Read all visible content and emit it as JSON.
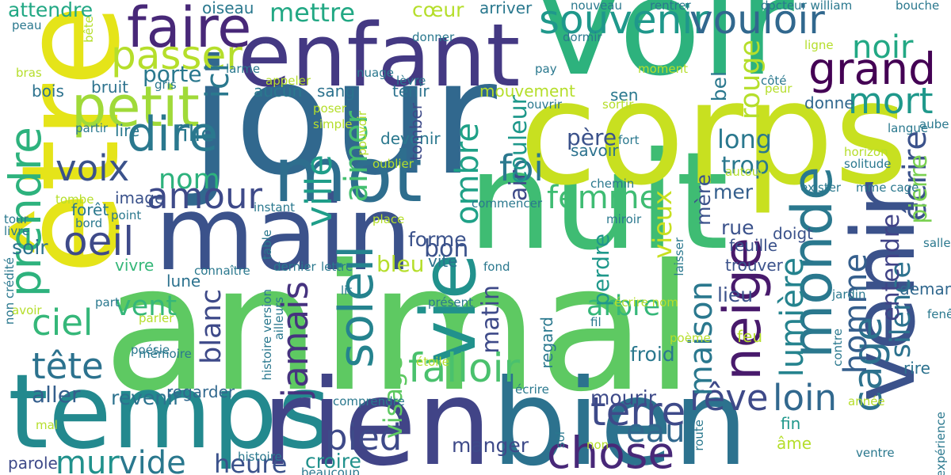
{
  "words": [
    {
      "text": "animal",
      "color": "#5ec962"
    },
    {
      "text": "nuit",
      "color": "#3fbc73"
    },
    {
      "text": "jour",
      "color": "#31688e"
    },
    {
      "text": "corps",
      "color": "#c8e020"
    },
    {
      "text": "voir",
      "color": "#2db27d"
    },
    {
      "text": "être",
      "color": "#e5e419"
    },
    {
      "text": "temps",
      "color": "#23898e"
    },
    {
      "text": "rien",
      "color": "#414487"
    },
    {
      "text": "bien",
      "color": "#2c728e"
    },
    {
      "text": "main",
      "color": "#3b528b"
    },
    {
      "text": "enfant",
      "color": "#443983"
    },
    {
      "text": "venir",
      "color": "#3b528b"
    },
    {
      "text": "mot",
      "color": "#2e6e8e"
    },
    {
      "text": "vie",
      "color": "#21918c"
    },
    {
      "text": "faire",
      "color": "#482878"
    },
    {
      "text": "petit",
      "color": "#a0da39"
    },
    {
      "text": "monde",
      "color": "#2a788e"
    },
    {
      "text": "souvenir",
      "color": "#1f988b"
    },
    {
      "text": "vouloir",
      "color": "#31688e"
    },
    {
      "text": "grand",
      "color": "#440154"
    },
    {
      "text": "passer",
      "color": "#b5de2b"
    },
    {
      "text": "dire",
      "color": "#2a788e"
    },
    {
      "text": "neige",
      "color": "#481a6c"
    },
    {
      "text": "chose",
      "color": "#482878"
    },
    {
      "text": "soleil",
      "color": "#25838e"
    },
    {
      "text": "prendre",
      "color": "#2db27d"
    },
    {
      "text": "oeil",
      "color": "#3e4a89"
    },
    {
      "text": "voix",
      "color": "#3b528b"
    },
    {
      "text": "terre",
      "color": "#3e4a89"
    },
    {
      "text": "falloir",
      "color": "#4ac16d"
    },
    {
      "text": "amour",
      "color": "#3e4a89"
    },
    {
      "text": "ciel",
      "color": "#35b779"
    },
    {
      "text": "tête",
      "color": "#2c728e"
    },
    {
      "text": "cage",
      "color": "#2c728e"
    },
    {
      "text": "pied",
      "color": "#3e4a89"
    },
    {
      "text": "jamais",
      "color": "#46337f"
    },
    {
      "text": "ville",
      "color": "#1f9e89"
    },
    {
      "text": "mort",
      "color": "#1f988b"
    },
    {
      "text": "rêve",
      "color": "#3e4a89"
    },
    {
      "text": "loin",
      "color": "#31688e"
    },
    {
      "text": "femme",
      "color": "#3fbc73"
    },
    {
      "text": "lumière",
      "color": "#25838e"
    },
    {
      "text": "eau",
      "color": "#31688e"
    },
    {
      "text": "écrire",
      "color": "#3b528b"
    },
    {
      "text": "foi",
      "color": "#2a788e"
    },
    {
      "text": "maison",
      "color": "#2a788e"
    },
    {
      "text": "homme",
      "color": "#355f8d"
    },
    {
      "text": "mur",
      "color": "#21918c"
    },
    {
      "text": "vide",
      "color": "#2a788e"
    },
    {
      "text": "ombre",
      "color": "#1fa187"
    },
    {
      "text": "noir",
      "color": "#22a884"
    },
    {
      "text": "aimer",
      "color": "#44bf70"
    },
    {
      "text": "mettre",
      "color": "#22a884"
    },
    {
      "text": "ici",
      "color": "#2a788e"
    },
    {
      "text": "nom",
      "color": "#2db27d"
    },
    {
      "text": "rouge",
      "color": "#b5de2b"
    },
    {
      "text": "blanc",
      "color": "#3e4a89"
    },
    {
      "text": "silence",
      "color": "#2c728e"
    },
    {
      "text": "vent",
      "color": "#35b779"
    },
    {
      "text": "arbre",
      "color": "#35b779"
    },
    {
      "text": "visage",
      "color": "#5ec962"
    },
    {
      "text": "heure",
      "color": "#3b528b"
    },
    {
      "text": "long",
      "color": "#2a788e"
    },
    {
      "text": "trop",
      "color": "#2a788e"
    },
    {
      "text": "air",
      "color": "#3e4a89"
    },
    {
      "text": "couleur",
      "color": "#1f988b"
    },
    {
      "text": "aller",
      "color": "#355f8d"
    },
    {
      "text": "pierre",
      "color": "#7ad151"
    },
    {
      "text": "bon",
      "color": "#3b528b"
    },
    {
      "text": "matin",
      "color": "#3e4a89"
    },
    {
      "text": "attendre",
      "color": "#22a884"
    },
    {
      "text": "bleu",
      "color": "#b5de2b"
    },
    {
      "text": "forme",
      "color": "#3b528b"
    },
    {
      "text": "perdre",
      "color": "#1f988b"
    },
    {
      "text": "vieux",
      "color": "#c8e020"
    },
    {
      "text": "porte",
      "color": "#2a788e"
    },
    {
      "text": "entendre",
      "color": "#404387"
    },
    {
      "text": "lieu",
      "color": "#3b528b"
    },
    {
      "text": "rue",
      "color": "#3b528b"
    },
    {
      "text": "fille",
      "color": "#2a788e"
    },
    {
      "text": "soir",
      "color": "#2c728e"
    },
    {
      "text": "mer",
      "color": "#355f8d"
    },
    {
      "text": "père",
      "color": "#3b528b"
    },
    {
      "text": "cœur",
      "color": "#b5de2b"
    },
    {
      "text": "sang",
      "color": "#2c728e"
    },
    {
      "text": "mère",
      "color": "#3b528b"
    },
    {
      "text": "feuille",
      "color": "#3b528b"
    },
    {
      "text": "bel",
      "color": "#2a788e"
    },
    {
      "text": "froid",
      "color": "#2a788e"
    },
    {
      "text": "manger",
      "color": "#3e4a89"
    },
    {
      "text": "croire",
      "color": "#21918c"
    },
    {
      "text": "mourir",
      "color": "#3e4a89"
    },
    {
      "text": "regarder",
      "color": "#31688e"
    },
    {
      "text": "revenir",
      "color": "#2c728e"
    },
    {
      "text": "fin",
      "color": "#1f988b"
    },
    {
      "text": "âme",
      "color": "#b5de2b"
    },
    {
      "text": "bois",
      "color": "#2c728e"
    },
    {
      "text": "lire",
      "color": "#2a788e"
    },
    {
      "text": "bruit",
      "color": "#2c728e"
    },
    {
      "text": "tenir",
      "color": "#2c728e"
    },
    {
      "text": "devenir",
      "color": "#2a788e"
    },
    {
      "text": "savoir",
      "color": "#2c728e"
    },
    {
      "text": "aucun",
      "color": "#2a788e"
    },
    {
      "text": "image",
      "color": "#3b528b"
    },
    {
      "text": "forêt",
      "color": "#2a788e"
    },
    {
      "text": "trouver",
      "color": "#3b528b"
    },
    {
      "text": "doigt",
      "color": "#3b528b"
    },
    {
      "text": "demande",
      "color": "#31688e"
    },
    {
      "text": "mouvement",
      "color": "#b5de2b"
    },
    {
      "text": "rire",
      "color": "#2c728e"
    },
    {
      "text": "vite",
      "color": "#2c728e"
    },
    {
      "text": "vivre",
      "color": "#35b779"
    },
    {
      "text": "lune",
      "color": "#2c728e"
    },
    {
      "text": "parole",
      "color": "#3e4a89"
    },
    {
      "text": "feu",
      "color": "#b5de2b"
    },
    {
      "text": "tomber",
      "color": "#3e4a89"
    },
    {
      "text": "sen",
      "color": "#2a788e"
    },
    {
      "text": "donne",
      "color": "#31688e"
    },
    {
      "text": "regard",
      "color": "#2a788e"
    },
    {
      "text": "arriver",
      "color": "#2a788e"
    },
    {
      "text": "oiseau",
      "color": "#2a788e"
    },
    {
      "text": "nouveau",
      "color": "#2a788e"
    },
    {
      "text": "rentrer",
      "color": "#2a788e"
    },
    {
      "text": "docteur william",
      "color": "#2a788e"
    },
    {
      "text": "bouche",
      "color": "#2a788e"
    },
    {
      "text": "peau",
      "color": "#2a788e"
    },
    {
      "text": "bête",
      "color": "#b5de2b"
    },
    {
      "text": "donner",
      "color": "#2a788e"
    },
    {
      "text": "dormir",
      "color": "#2a788e"
    },
    {
      "text": "ligne",
      "color": "#b5de2b"
    },
    {
      "text": "larme",
      "color": "#2a788e"
    },
    {
      "text": "nuage",
      "color": "#2a788e"
    },
    {
      "text": "pay",
      "color": "#2a788e"
    },
    {
      "text": "moment",
      "color": "#b5de2b"
    },
    {
      "text": "appeler",
      "color": "#b5de2b"
    },
    {
      "text": "lèvre",
      "color": "#2a788e"
    },
    {
      "text": "bras",
      "color": "#b5de2b"
    },
    {
      "text": "gris",
      "color": "#2a788e"
    },
    {
      "text": "côté",
      "color": "#2a788e"
    },
    {
      "text": "peur",
      "color": "#b5de2b"
    },
    {
      "text": "poser",
      "color": "#b5de2b"
    },
    {
      "text": "ouvrir",
      "color": "#2a788e"
    },
    {
      "text": "sortir",
      "color": "#b5de2b"
    },
    {
      "text": "simple",
      "color": "#b5de2b"
    },
    {
      "text": "pouvoir",
      "color": "#b5de2b"
    },
    {
      "text": "partir",
      "color": "#2a788e"
    },
    {
      "text": "fort",
      "color": "#2a788e"
    },
    {
      "text": "langue",
      "color": "#2a788e"
    },
    {
      "text": "aube",
      "color": "#2a788e"
    },
    {
      "text": "oublier",
      "color": "#b5de2b"
    },
    {
      "text": "horizon",
      "color": "#b5de2b"
    },
    {
      "text": "solitude",
      "color": "#2a788e"
    },
    {
      "text": "autour",
      "color": "#b5de2b"
    },
    {
      "text": "chemin",
      "color": "#2a788e"
    },
    {
      "text": "exister",
      "color": "#2a788e"
    },
    {
      "text": "mme cage",
      "color": "#2a788e"
    },
    {
      "text": "tombe",
      "color": "#b5de2b"
    },
    {
      "text": "commencer",
      "color": "#2a788e"
    },
    {
      "text": "point",
      "color": "#2a788e"
    },
    {
      "text": "instant",
      "color": "#2a788e"
    },
    {
      "text": "place",
      "color": "#b5de2b"
    },
    {
      "text": "tour",
      "color": "#2a788e"
    },
    {
      "text": "livre",
      "color": "#2a788e"
    },
    {
      "text": "bord",
      "color": "#2a788e"
    },
    {
      "text": "miroir",
      "color": "#2a788e"
    },
    {
      "text": "salle",
      "color": "#2a788e"
    },
    {
      "text": "laisser",
      "color": "#2a788e"
    },
    {
      "text": "table",
      "color": "#2a788e"
    },
    {
      "text": "connaître",
      "color": "#2a788e"
    },
    {
      "text": "dernier",
      "color": "#2a788e"
    },
    {
      "text": "lettre",
      "color": "#2a788e"
    },
    {
      "text": "fond",
      "color": "#2a788e"
    },
    {
      "text": "non crédité",
      "color": "#2a788e"
    },
    {
      "text": "lit",
      "color": "#2a788e"
    },
    {
      "text": "présent",
      "color": "#2a788e"
    },
    {
      "text": "écrire nom",
      "color": "#b5de2b"
    },
    {
      "text": "jardin",
      "color": "#2a788e"
    },
    {
      "text": "avoir",
      "color": "#b5de2b"
    },
    {
      "text": "part",
      "color": "#2a788e"
    },
    {
      "text": "fil",
      "color": "#2a788e"
    },
    {
      "text": "fenêtre",
      "color": "#2a788e"
    },
    {
      "text": "parler",
      "color": "#b5de2b"
    },
    {
      "text": "histoire version",
      "color": "#2a788e"
    },
    {
      "text": "ailleurs",
      "color": "#2a788e"
    },
    {
      "text": "poème",
      "color": "#b5de2b"
    },
    {
      "text": "poésie",
      "color": "#2a788e"
    },
    {
      "text": "mémoire",
      "color": "#2a788e"
    },
    {
      "text": "étoile",
      "color": "#b5de2b"
    },
    {
      "text": "contre",
      "color": "#2a788e"
    },
    {
      "text": "écrire",
      "color": "#2a788e"
    },
    {
      "text": "comprendre",
      "color": "#2a788e"
    },
    {
      "text": "année",
      "color": "#b5de2b"
    },
    {
      "text": "mal",
      "color": "#b5de2b"
    },
    {
      "text": "sol",
      "color": "#2a788e"
    },
    {
      "text": "non",
      "color": "#b5de2b"
    },
    {
      "text": "route",
      "color": "#2a788e"
    },
    {
      "text": "ventre",
      "color": "#2a788e"
    },
    {
      "text": "expérience",
      "color": "#2a788e"
    },
    {
      "text": "histoire",
      "color": "#2a788e"
    },
    {
      "text": "beaucoup",
      "color": "#2a788e"
    }
  ]
}
